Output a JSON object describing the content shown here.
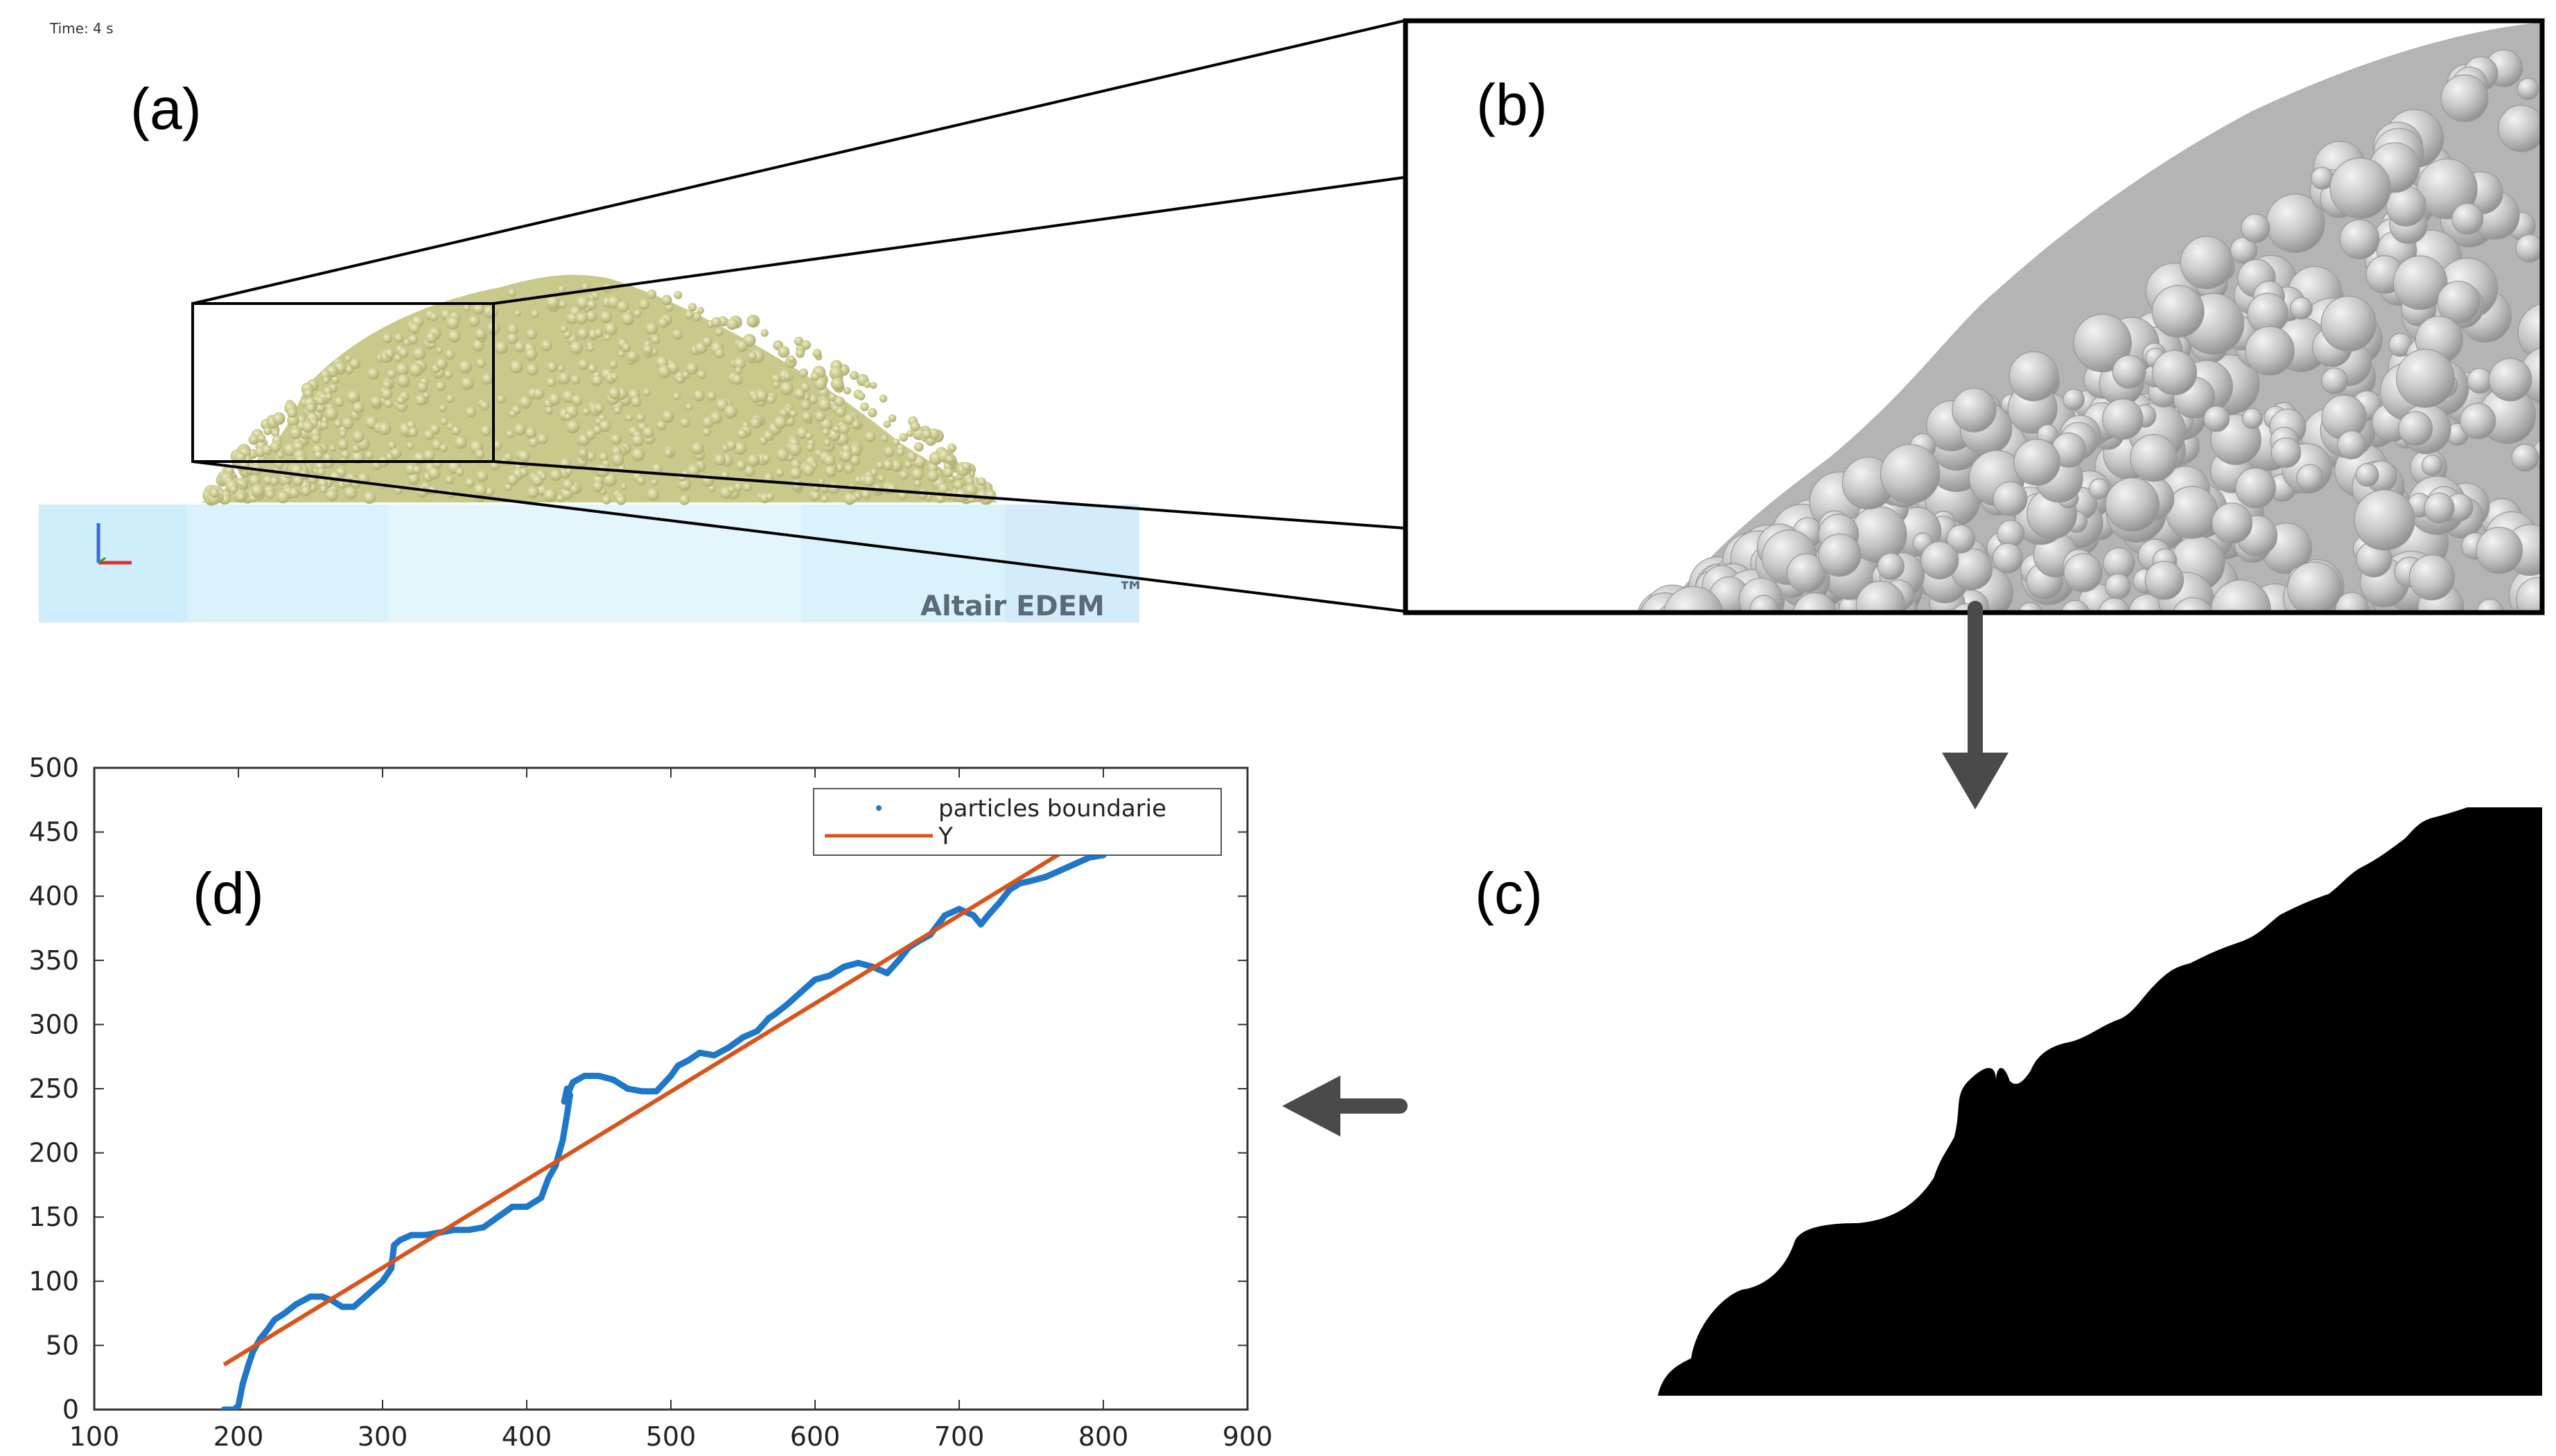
{
  "panels": {
    "a": {
      "label": "(a)",
      "time_text": "Time: 4 s",
      "brand": "Altair EDEM",
      "brand_tm": "™"
    },
    "b": {
      "label": "(b)"
    },
    "c": {
      "label": "(c)"
    },
    "d": {
      "label": "(d)"
    }
  },
  "colors": {
    "pile": "#c9c98c",
    "floor": "#d9f2fb",
    "particles": "#bdbdbd",
    "boundary_series": "#1f77c8",
    "fit_line": "#d8541c",
    "arrow": "#4a4a4a"
  },
  "arrows": {
    "b_to_c": "arrow-down-icon",
    "c_to_d": "arrow-left-icon"
  },
  "chart_data": {
    "type": "line",
    "title": "",
    "xlabel": "",
    "ylabel": "",
    "xlim": [
      100,
      900
    ],
    "ylim": [
      0,
      500
    ],
    "xticks": [
      "100",
      "200",
      "300",
      "400",
      "500",
      "600",
      "700",
      "800",
      "900"
    ],
    "yticks": [
      "0",
      "50",
      "100",
      "150",
      "200",
      "250",
      "300",
      "350",
      "400",
      "450",
      "500"
    ],
    "legend_position": "top-right",
    "grid": false,
    "series": [
      {
        "name": "particles boundarie",
        "style": "points",
        "x": [
          190,
          197,
          200,
          203,
          207,
          210,
          215,
          220,
          225,
          232,
          240,
          250,
          258,
          265,
          272,
          280,
          290,
          300,
          306,
          308,
          312,
          320,
          330,
          340,
          350,
          360,
          370,
          380,
          390,
          400,
          410,
          415,
          420,
          425,
          428,
          430,
          428,
          426,
          428,
          432,
          440,
          450,
          460,
          470,
          480,
          490,
          500,
          505,
          512,
          520,
          530,
          540,
          550,
          560,
          568,
          572,
          580,
          590,
          600,
          610,
          620,
          630,
          640,
          650,
          658,
          665,
          672,
          680,
          690,
          700,
          710,
          715,
          720,
          728,
          735,
          742,
          750,
          760,
          770,
          780,
          790,
          800
        ],
        "y": [
          0,
          0,
          3,
          20,
          35,
          45,
          55,
          62,
          70,
          75,
          82,
          88,
          88,
          85,
          80,
          80,
          90,
          100,
          110,
          128,
          132,
          136,
          136,
          138,
          140,
          140,
          142,
          150,
          158,
          158,
          165,
          180,
          190,
          210,
          230,
          245,
          250,
          240,
          245,
          255,
          260,
          260,
          257,
          250,
          248,
          248,
          260,
          268,
          272,
          278,
          276,
          282,
          290,
          295,
          305,
          308,
          315,
          325,
          335,
          338,
          345,
          348,
          345,
          340,
          350,
          360,
          365,
          370,
          385,
          390,
          385,
          378,
          385,
          395,
          405,
          410,
          412,
          415,
          420,
          425,
          430,
          432
        ]
      },
      {
        "name": "Y",
        "style": "line",
        "x": [
          190,
          780
        ],
        "y": [
          35,
          440
        ]
      }
    ]
  }
}
